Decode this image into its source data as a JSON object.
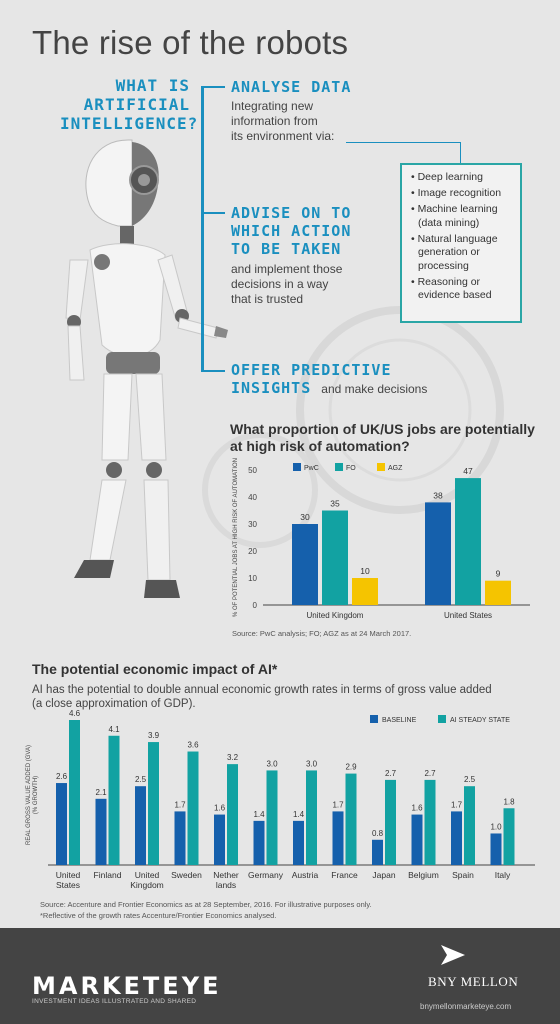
{
  "title": "The rise of the robots",
  "what_ai": [
    "WHAT IS",
    "ARTIFICIAL",
    "INTELLIGENCE?"
  ],
  "analyse": {
    "heading": "ANALYSE DATA",
    "lines": [
      "Integrating new",
      "information from",
      "its environment via:"
    ]
  },
  "bullets": [
    "Deep learning",
    "Image recognition",
    "Machine learning (data mining)",
    "Natural language generation or processing",
    "Reasoning or evidence based"
  ],
  "advise": {
    "heading": [
      "ADVISE ON TO",
      "WHICH ACTION",
      "TO BE TAKEN"
    ],
    "lines": [
      "and implement those",
      "decisions in a way",
      "that is trusted"
    ]
  },
  "offer": {
    "heading": [
      "OFFER PREDICTIVE",
      "INSIGHTS"
    ],
    "suffix": "and make decisions"
  },
  "jobs_title": [
    "What proportion of UK/US jobs are potentially",
    "at high risk of automation?"
  ],
  "jobs_source": "Source: PwC analysis; FO; AGZ as at 24 March 2017.",
  "gva_title": "The potential economic impact of AI*",
  "gva_subtext": "AI has the potential to double annual economic growth rates in terms of gross value added (a close approximation of GDP).",
  "gva_source": "Source: Accenture and Frontier Economics as at 28 September, 2016. For illustrative purposes only.",
  "gva_footnote": "*Reflective of the growth rates Accenture/Frontier Economics analysed.",
  "footer": {
    "brand": "MARKETEYE",
    "tagline": "INVESTMENT IDEAS ILLUSTRATED AND SHARED",
    "bny": "BNY MELLON",
    "url": "bnymellonmarketeye.com"
  },
  "colors": {
    "blue": "#1560ac",
    "teal": "#12a2a2",
    "yellow": "#f5c400",
    "accent": "#1a8fbf",
    "footer_bg": "#444444"
  },
  "chart_data": [
    {
      "type": "bar",
      "categories": [
        "United Kingdom",
        "United States"
      ],
      "series": [
        {
          "name": "PwC",
          "values": [
            30,
            38
          ]
        },
        {
          "name": "FO",
          "values": [
            35,
            47
          ]
        },
        {
          "name": "AGZ",
          "values": [
            10,
            9
          ]
        }
      ],
      "ylabel": "% OF POTENTIAL JOBS AT HIGH RISK OF AUTOMATION",
      "ylim": [
        0,
        50
      ],
      "yticks": [
        0,
        10,
        20,
        30,
        40,
        50
      ],
      "legend": "top-left",
      "grid": false
    },
    {
      "type": "bar",
      "categories": [
        "United States",
        "Finland",
        "United Kingdom",
        "Sweden",
        "Netherlands",
        "Germany",
        "Austria",
        "France",
        "Japan",
        "Belgium",
        "Spain",
        "Italy"
      ],
      "category_lines": [
        [
          "United",
          "States"
        ],
        [
          "Finland"
        ],
        [
          "United",
          "Kingdom"
        ],
        [
          "Sweden"
        ],
        [
          "Nether",
          "lands"
        ],
        [
          "Germany"
        ],
        [
          "Austria"
        ],
        [
          "France"
        ],
        [
          "Japan"
        ],
        [
          "Belgium"
        ],
        [
          "Spain"
        ],
        [
          "Italy"
        ]
      ],
      "series": [
        {
          "name": "BASELINE",
          "values": [
            2.6,
            2.1,
            2.5,
            1.7,
            1.6,
            1.4,
            1.4,
            1.7,
            0.8,
            1.6,
            1.7,
            1.0
          ]
        },
        {
          "name": "AI STEADY STATE",
          "values": [
            4.6,
            4.1,
            3.9,
            3.6,
            3.2,
            3.0,
            3.0,
            2.9,
            2.7,
            2.7,
            2.5,
            1.8
          ]
        }
      ],
      "ylabel": [
        "REAL GROSS VALUE ADDED (GVA)",
        "(% GROWTH)"
      ],
      "legend": "top-right",
      "grid": false
    }
  ]
}
